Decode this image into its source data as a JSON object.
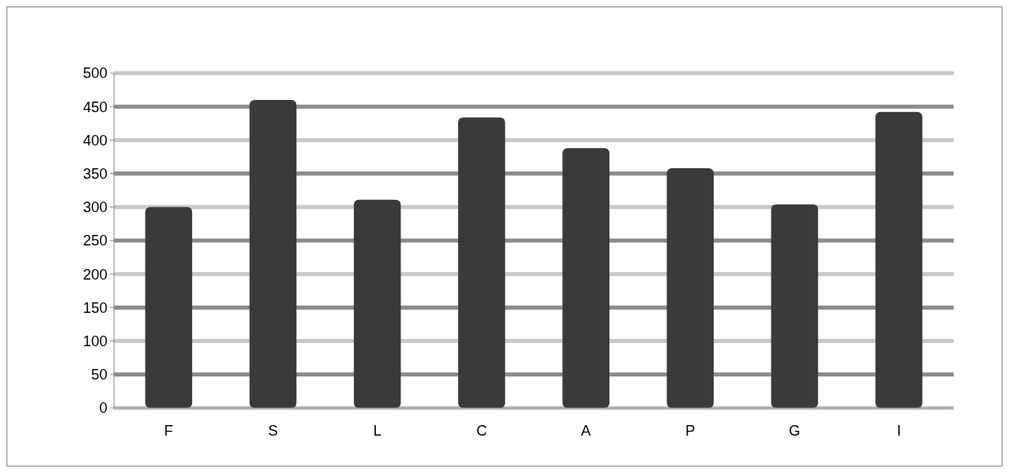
{
  "chart_data": {
    "type": "bar",
    "categories": [
      "F",
      "S",
      "L",
      "C",
      "A",
      "P",
      "G",
      "I"
    ],
    "values": [
      300,
      460,
      311,
      434,
      388,
      358,
      304,
      442
    ],
    "color": "#3a3a3a",
    "ylim": [
      0,
      500
    ],
    "yticks": [
      0,
      50,
      100,
      150,
      200,
      250,
      300,
      350,
      400,
      450,
      500
    ],
    "grid": "y"
  }
}
